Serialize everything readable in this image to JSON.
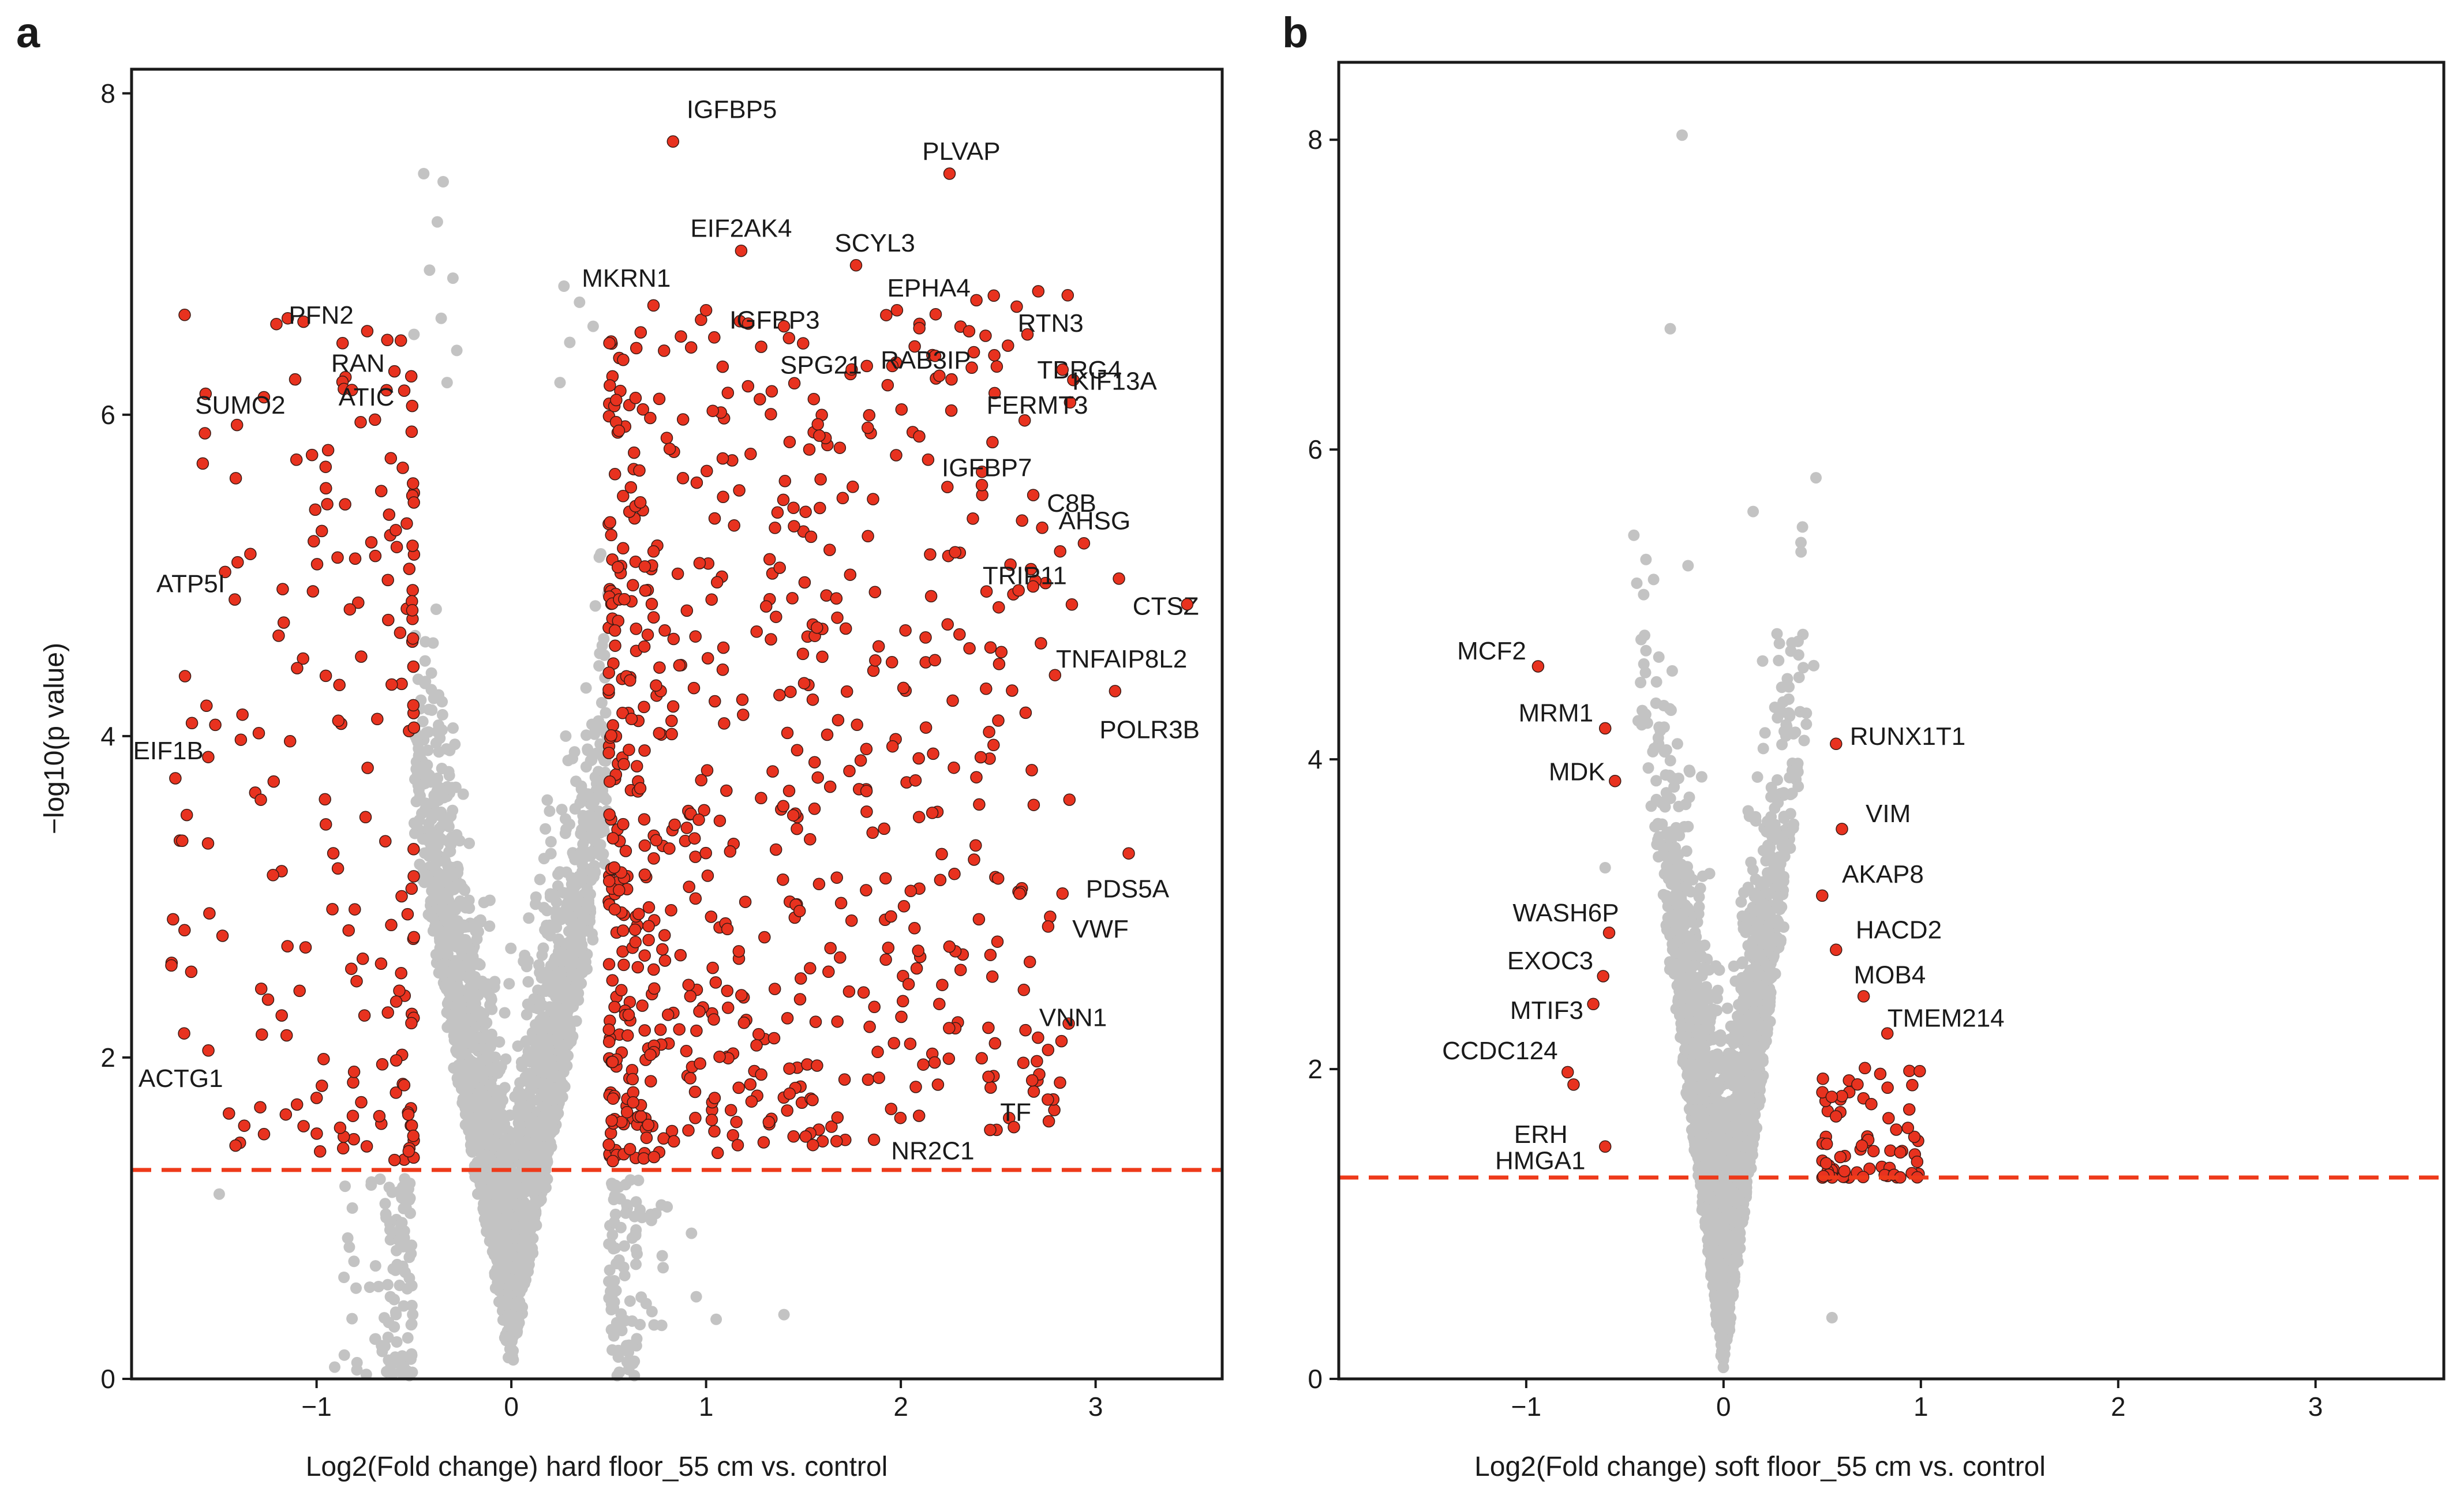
{
  "figure": {
    "panels": [
      {
        "letter": "a",
        "chart_data": {
          "type": "scatter",
          "subtype": "volcano",
          "xlabel": "Log2(Fold change) hard floor_55 cm vs. control",
          "ylabel": "−log10(p value)",
          "xlim": [
            -1.95,
            3.65
          ],
          "ylim": [
            0,
            8.15
          ],
          "xticks": [
            -1,
            0,
            1,
            2,
            3
          ],
          "yticks": [
            0,
            2,
            4,
            6,
            8
          ],
          "significance_threshold": 1.3,
          "fold_change_threshold": 0.5,
          "colors": {
            "significant": "#e8321f",
            "nonsignificant": "#c3c3c3",
            "threshold_line": "#ee3a1a"
          },
          "background_cloud": {
            "seed": 11,
            "n_gray": 2600,
            "n_red": 900,
            "x_spread": 0.5,
            "neg_red_fraction": 0.25
          },
          "extra_gray_points": [
            {
              "x": -0.45,
              "y": 7.5
            },
            {
              "x": -0.35,
              "y": 7.45
            },
            {
              "x": -0.38,
              "y": 7.2
            },
            {
              "x": -0.42,
              "y": 6.9
            },
            {
              "x": -0.3,
              "y": 6.85
            },
            {
              "x": -0.36,
              "y": 6.6
            },
            {
              "x": -0.28,
              "y": 6.4
            },
            {
              "x": -0.33,
              "y": 6.2
            },
            {
              "x": 0.27,
              "y": 6.8
            },
            {
              "x": 0.35,
              "y": 6.7
            },
            {
              "x": 0.3,
              "y": 6.45
            },
            {
              "x": 0.25,
              "y": 6.2
            },
            {
              "x": -0.5,
              "y": 6.5
            },
            {
              "x": 0.42,
              "y": 6.55
            },
            {
              "x": -1.5,
              "y": 1.15
            },
            {
              "x": 1.4,
              "y": 0.4
            }
          ],
          "labeled_points": [
            {
              "gene": "IGFBP5",
              "x": 0.83,
              "y": 7.7,
              "anchor": "start",
              "dx": 0.07,
              "dy": 0.2
            },
            {
              "gene": "PLVAP",
              "x": 2.25,
              "y": 7.5,
              "anchor": "start",
              "dx": -0.14,
              "dy": 0.14
            },
            {
              "gene": "EIF2AK4",
              "x": 1.18,
              "y": 7.02,
              "anchor": "middle",
              "dx": 0.0,
              "dy": 0.14
            },
            {
              "gene": "SCYL3",
              "x": 1.77,
              "y": 6.93,
              "anchor": "start",
              "dx": -0.11,
              "dy": 0.14
            },
            {
              "gene": "MKRN1",
              "x": 0.73,
              "y": 6.68,
              "anchor": "middle",
              "dx": -0.14,
              "dy": 0.17
            },
            {
              "gene": "EPHA4",
              "x": 1.98,
              "y": 6.65,
              "anchor": "start",
              "dx": -0.05,
              "dy": 0.14
            },
            {
              "gene": "IGFBP3",
              "x": 1.0,
              "y": 6.65,
              "anchor": "start",
              "dx": 0.12,
              "dy": -0.06
            },
            {
              "gene": "RTN3",
              "x": 2.55,
              "y": 6.43,
              "anchor": "start",
              "dx": 0.05,
              "dy": 0.14
            },
            {
              "gene": "SPG21",
              "x": 1.4,
              "y": 6.55,
              "anchor": "start",
              "dx": -0.02,
              "dy": -0.24
            },
            {
              "gene": "RAB3IP",
              "x": 2.48,
              "y": 6.37,
              "anchor": "end",
              "dx": -0.12,
              "dy": -0.03
            },
            {
              "gene": "TBRG4",
              "x": 2.65,
              "y": 6.5,
              "anchor": "start",
              "dx": 0.05,
              "dy": -0.22
            },
            {
              "gene": "KIF13A",
              "x": 2.83,
              "y": 6.28,
              "anchor": "start",
              "dx": 0.05,
              "dy": -0.07
            },
            {
              "gene": "FERMT3",
              "x": 2.26,
              "y": 6.22,
              "anchor": "start",
              "dx": 0.18,
              "dy": -0.16
            },
            {
              "gene": "PFN2",
              "x": -0.74,
              "y": 6.52,
              "anchor": "end",
              "dx": -0.07,
              "dy": 0.1
            },
            {
              "gene": "RAN",
              "x": -0.6,
              "y": 6.27,
              "anchor": "end",
              "dx": -0.05,
              "dy": 0.05
            },
            {
              "gene": "SUMO2",
              "x": -1.11,
              "y": 6.22,
              "anchor": "end",
              "dx": -0.05,
              "dy": -0.16
            },
            {
              "gene": "ATIC",
              "x": -0.55,
              "y": 6.15,
              "anchor": "end",
              "dx": -0.05,
              "dy": -0.04
            },
            {
              "gene": "IGFBP7",
              "x": 2.14,
              "y": 5.72,
              "anchor": "start",
              "dx": 0.07,
              "dy": -0.05
            },
            {
              "gene": "C8B",
              "x": 2.68,
              "y": 5.5,
              "anchor": "start",
              "dx": 0.07,
              "dy": -0.05
            },
            {
              "gene": "AHSG",
              "x": 2.94,
              "y": 5.2,
              "anchor": "start",
              "dx": -0.13,
              "dy": 0.14
            },
            {
              "gene": "TRIP11",
              "x": 2.44,
              "y": 4.9,
              "anchor": "start",
              "dx": -0.02,
              "dy": 0.1
            },
            {
              "gene": "CTSZ",
              "x": 3.12,
              "y": 4.98,
              "anchor": "start",
              "dx": 0.07,
              "dy": -0.17
            },
            {
              "gene": "TNFAIP8L2",
              "x": 3.47,
              "y": 4.82,
              "anchor": "end",
              "dx": 0.0,
              "dy": -0.34
            },
            {
              "gene": "ATP5I",
              "x": -1.42,
              "y": 4.85,
              "anchor": "end",
              "dx": -0.05,
              "dy": 0.1
            },
            {
              "gene": "POLR3B",
              "x": 3.1,
              "y": 4.28,
              "anchor": "start",
              "dx": -0.08,
              "dy": -0.24
            },
            {
              "gene": "EIF1B",
              "x": -1.52,
              "y": 4.07,
              "anchor": "end",
              "dx": -0.06,
              "dy": -0.16
            },
            {
              "gene": "PDS5A",
              "x": 3.17,
              "y": 3.27,
              "anchor": "start",
              "dx": -0.22,
              "dy": -0.22
            },
            {
              "gene": "VWF",
              "x": 2.83,
              "y": 3.02,
              "anchor": "start",
              "dx": 0.05,
              "dy": -0.22
            },
            {
              "gene": "VNN1",
              "x": 2.64,
              "y": 2.17,
              "anchor": "start",
              "dx": 0.07,
              "dy": 0.08
            },
            {
              "gene": "ACTG1",
              "x": -1.68,
              "y": 2.15,
              "anchor": "end",
              "dx": 0.2,
              "dy": -0.28
            },
            {
              "gene": "TF",
              "x": 2.45,
              "y": 1.88,
              "anchor": "start",
              "dx": 0.06,
              "dy": -0.22
            },
            {
              "gene": "NR2C1",
              "x": 1.95,
              "y": 1.68,
              "anchor": "start",
              "dx": 0.0,
              "dy": -0.26
            }
          ]
        }
      },
      {
        "letter": "b",
        "chart_data": {
          "type": "scatter",
          "subtype": "volcano",
          "xlabel": "Log2(Fold change) soft floor_55 cm vs. control",
          "ylabel": "",
          "xlim": [
            -1.95,
            3.65
          ],
          "ylim": [
            0,
            8.5
          ],
          "xticks": [
            -1,
            0,
            1,
            2,
            3
          ],
          "yticks": [
            0,
            2,
            4,
            6,
            8
          ],
          "significance_threshold": 1.3,
          "fold_change_threshold": 0.5,
          "colors": {
            "significant": "#e8321f",
            "nonsignificant": "#c3c3c3",
            "threshold_line": "#ee3a1a"
          },
          "background_cloud": {
            "seed": 23,
            "n_gray": 3000,
            "n_red": 70,
            "x_spread": 0.25,
            "neg_red_fraction": 0.0
          },
          "extra_gray_points": [
            {
              "x": -0.21,
              "y": 8.03
            },
            {
              "x": -0.27,
              "y": 6.78
            },
            {
              "x": 0.15,
              "y": 5.6
            },
            {
              "x": 0.4,
              "y": 5.5
            },
            {
              "x": -0.18,
              "y": 5.25
            },
            {
              "x": -0.4,
              "y": 4.8
            },
            {
              "x": -0.34,
              "y": 4.5
            },
            {
              "x": -0.6,
              "y": 3.3
            }
          ],
          "labeled_points": [
            {
              "gene": "MCF2",
              "x": -0.94,
              "y": 4.6,
              "anchor": "end",
              "dx": -0.06,
              "dy": 0.1
            },
            {
              "gene": "MRM1",
              "x": -0.6,
              "y": 4.2,
              "anchor": "end",
              "dx": -0.06,
              "dy": 0.1
            },
            {
              "gene": "RUNX1T1",
              "x": 0.57,
              "y": 4.1,
              "anchor": "start",
              "dx": 0.07,
              "dy": 0.05
            },
            {
              "gene": "MDK",
              "x": -0.55,
              "y": 3.86,
              "anchor": "end",
              "dx": -0.05,
              "dy": 0.06
            },
            {
              "gene": "VIM",
              "x": 0.6,
              "y": 3.55,
              "anchor": "start",
              "dx": 0.12,
              "dy": 0.1
            },
            {
              "gene": "AKAP8",
              "x": 0.5,
              "y": 3.12,
              "anchor": "start",
              "dx": 0.1,
              "dy": 0.14
            },
            {
              "gene": "WASH6P",
              "x": -0.58,
              "y": 2.88,
              "anchor": "end",
              "dx": 0.05,
              "dy": 0.13
            },
            {
              "gene": "HACD2",
              "x": 0.57,
              "y": 2.77,
              "anchor": "start",
              "dx": 0.1,
              "dy": 0.13
            },
            {
              "gene": "EXOC3",
              "x": -0.61,
              "y": 2.6,
              "anchor": "end",
              "dx": -0.05,
              "dy": 0.1
            },
            {
              "gene": "MOB4",
              "x": 0.71,
              "y": 2.47,
              "anchor": "start",
              "dx": -0.05,
              "dy": 0.14
            },
            {
              "gene": "TMEM214",
              "x": 0.83,
              "y": 2.23,
              "anchor": "start",
              "dx": 0.0,
              "dy": 0.1
            },
            {
              "gene": "MTIF3",
              "x": -0.66,
              "y": 2.42,
              "anchor": "end",
              "dx": -0.05,
              "dy": -0.04
            },
            {
              "gene": "CCDC124",
              "x": -0.79,
              "y": 1.98,
              "anchor": "end",
              "dx": -0.05,
              "dy": 0.14
            },
            {
              "gene": "ERH",
              "x": -0.76,
              "y": 1.9,
              "anchor": "end",
              "dx": -0.03,
              "dy": -0.32
            },
            {
              "gene": "HMGA1",
              "x": -0.6,
              "y": 1.5,
              "anchor": "end",
              "dx": -0.1,
              "dy": -0.09
            }
          ]
        }
      }
    ]
  }
}
